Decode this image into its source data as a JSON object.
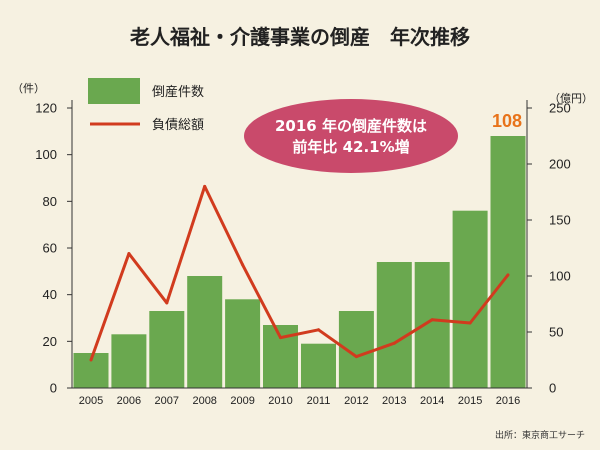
{
  "title": "老人福祉・介護事業の倒産　年次推移",
  "source": "出所：東京商工サーチ",
  "callout": {
    "line1": "2016 年の倒産件数は",
    "line2": "前年比 42.1%増"
  },
  "colors": {
    "background": "#f6f1e1",
    "bars": "#6aa84f",
    "line": "#d13b1e",
    "callout": "#c94a6b",
    "highlight_label": "#e8731a"
  },
  "chart_data": {
    "type": "bar",
    "title": "老人福祉・介護事業の倒産　年次推移",
    "categories": [
      "2005",
      "2006",
      "2007",
      "2008",
      "2009",
      "2010",
      "2011",
      "2012",
      "2013",
      "2014",
      "2015",
      "2016"
    ],
    "series": [
      {
        "name": "倒産件数",
        "type": "bar",
        "axis": "left",
        "values": [
          15,
          23,
          33,
          48,
          38,
          27,
          19,
          33,
          54,
          54,
          76,
          108
        ]
      },
      {
        "name": "負債総額",
        "type": "line",
        "axis": "right",
        "values": [
          25,
          120,
          76,
          180,
          110,
          45,
          52,
          28,
          40,
          61,
          58,
          101
        ]
      }
    ],
    "y_left": {
      "unit": "（件）",
      "range": [
        0,
        120
      ],
      "ticks": [
        "0",
        "20",
        "40",
        "60",
        "80",
        "100",
        "120"
      ]
    },
    "y_right": {
      "unit": "（億円）",
      "range": [
        0,
        250
      ],
      "ticks": [
        "0",
        "50",
        "100",
        "150",
        "200",
        "250"
      ]
    },
    "highlight": {
      "category": "2016",
      "label": "108"
    },
    "legend_position": "top-left",
    "grid": false
  }
}
